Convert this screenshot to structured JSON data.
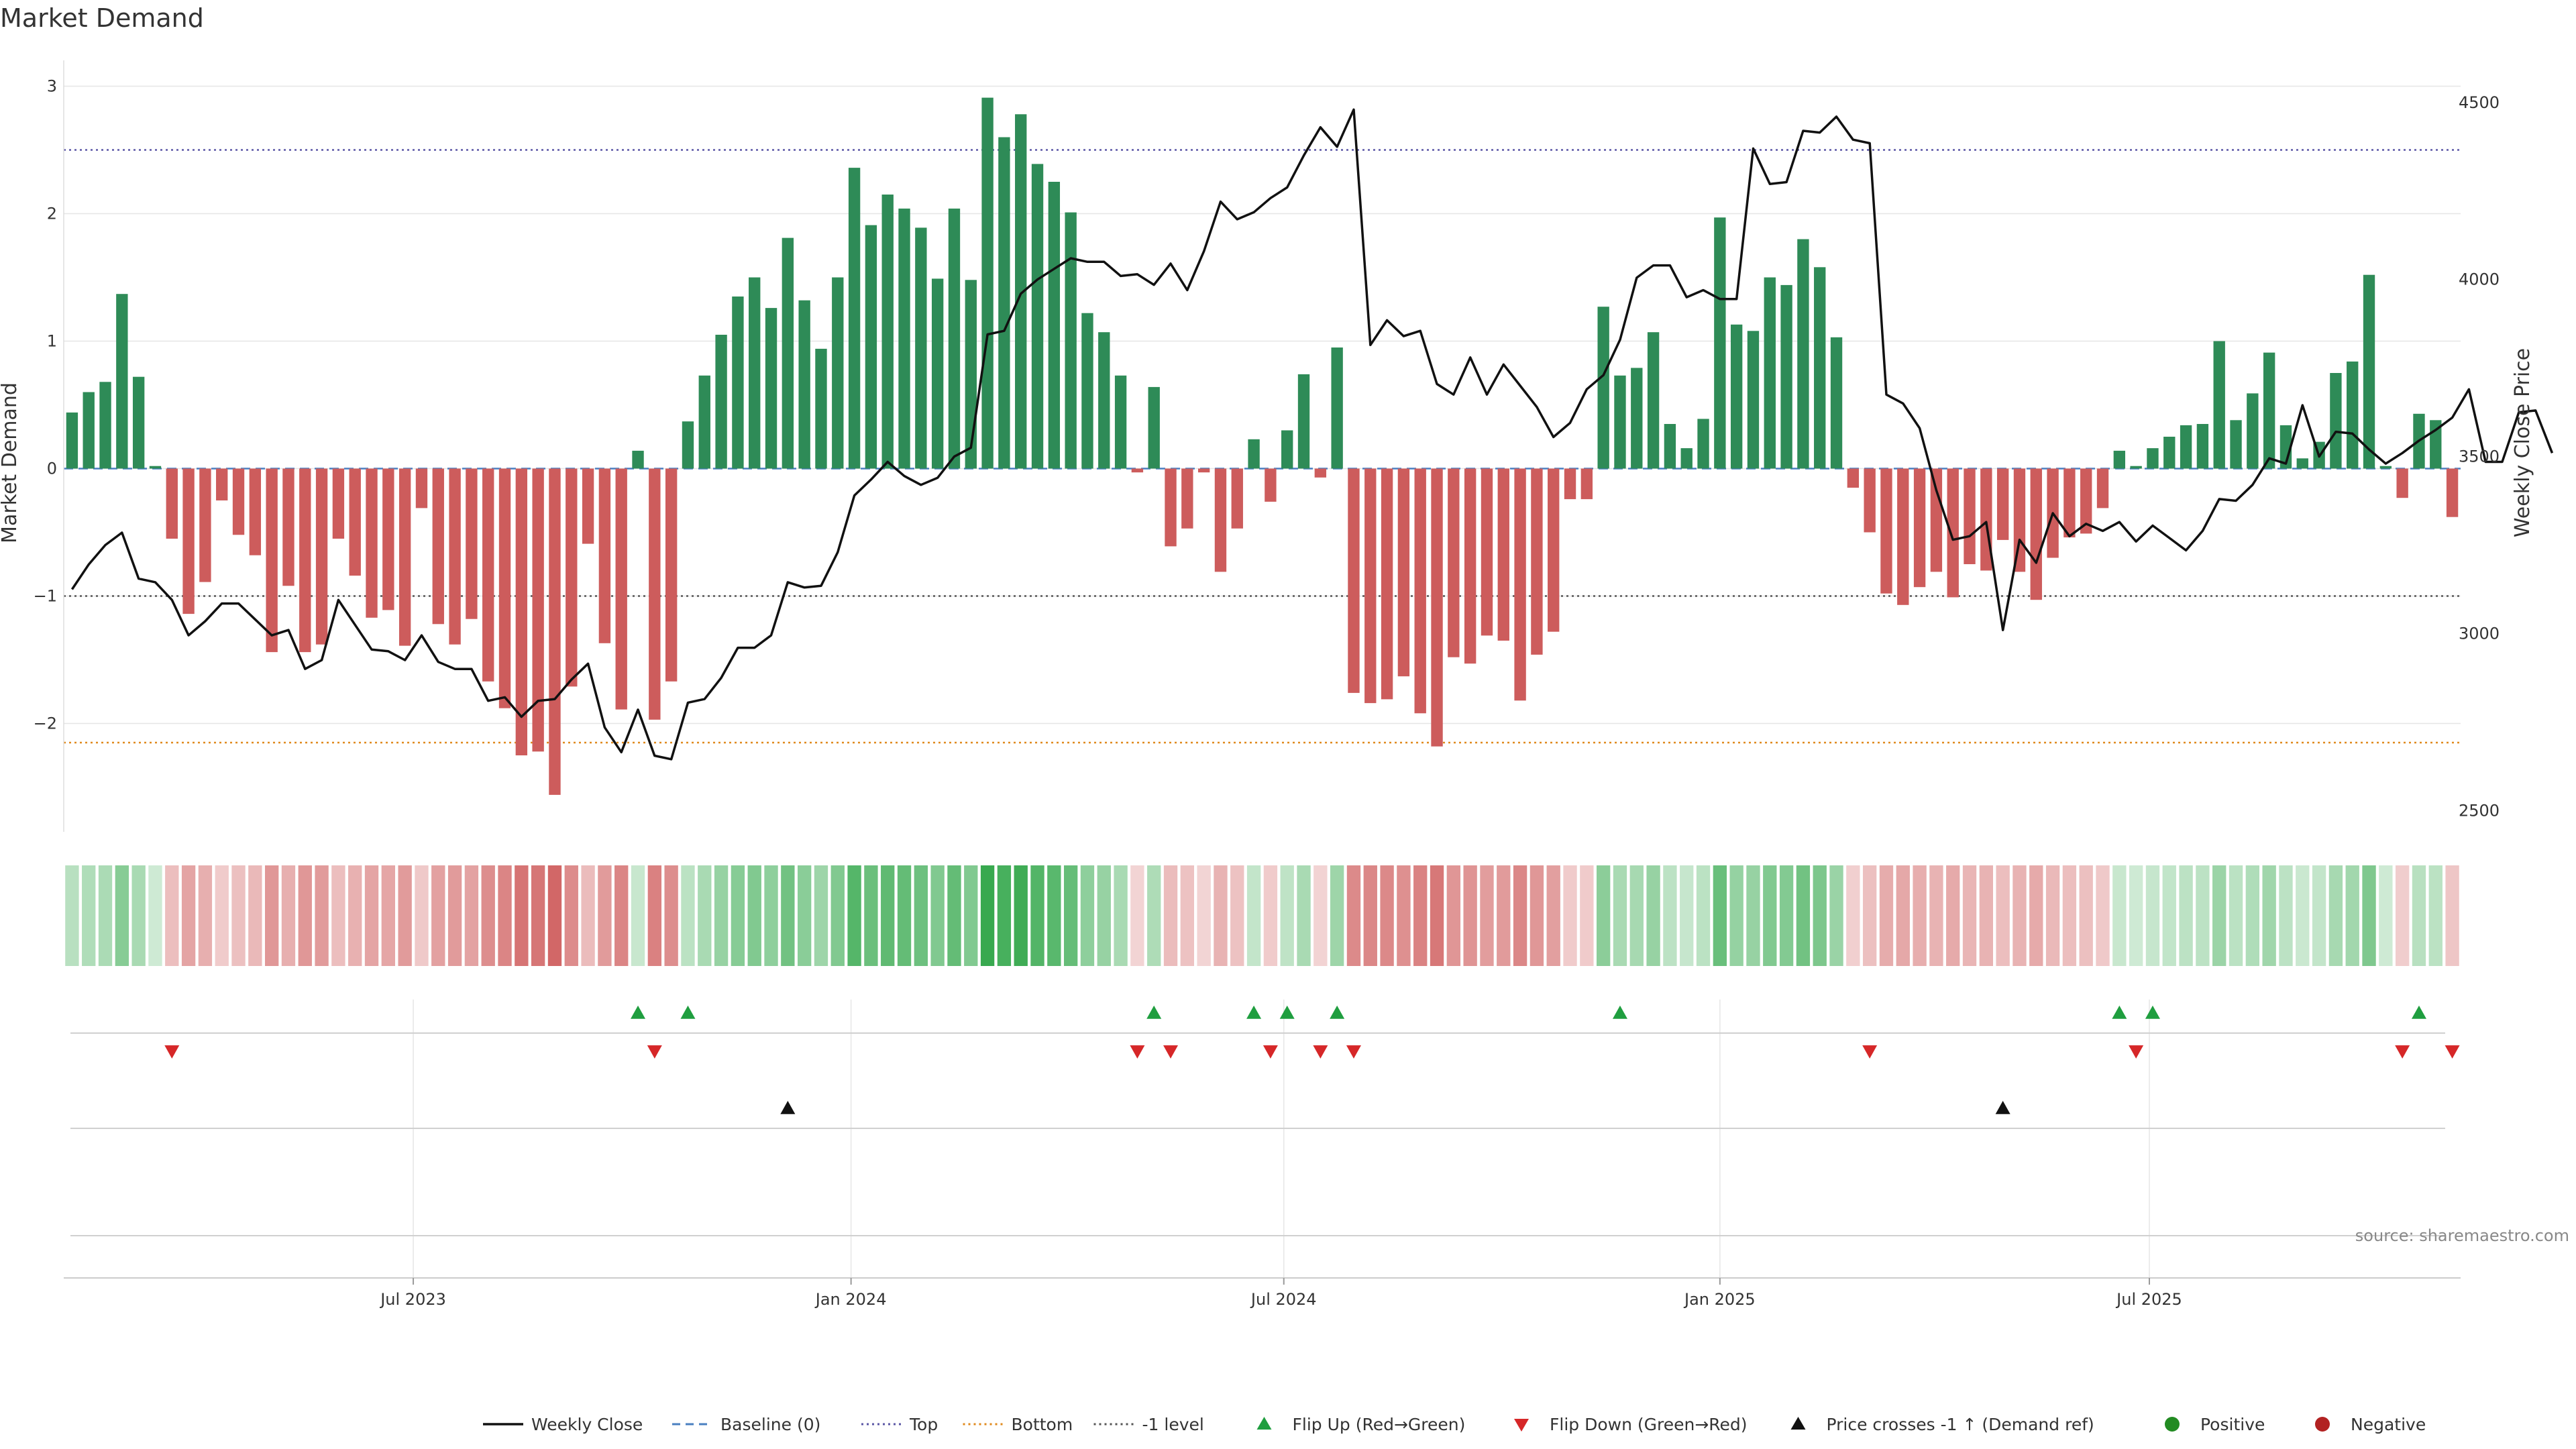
{
  "chart_data": {
    "type": "bar",
    "title": "Market Demand",
    "ylabel_left": "Market Demand",
    "ylabel_right": "Weekly Close Price",
    "source": "source: sharemaestro.com",
    "ylim_left": [
      -2.85,
      3.15
    ],
    "ylim_right": [
      2440,
      4600
    ],
    "left_ticks": [
      3,
      2,
      1,
      0,
      -1,
      -2
    ],
    "left_tick_labels": [
      "3",
      "2",
      "1",
      "0",
      "−1",
      "−2"
    ],
    "right_ticks": [
      4500,
      4000,
      3500,
      3000,
      2500
    ],
    "right_tick_labels": [
      "4500",
      "4000",
      "3500",
      "3000",
      "2500"
    ],
    "x_ticks": [
      {
        "label": "Jul 2023",
        "week": 20.5
      },
      {
        "label": "Jan 2024",
        "week": 46.8
      },
      {
        "label": "Jul 2024",
        "week": 72.8
      },
      {
        "label": "Jan 2025",
        "week": 99.0
      },
      {
        "label": "Jul 2025",
        "week": 124.8
      }
    ],
    "reference_lines": [
      {
        "name": "Top",
        "value": 2.5,
        "color": "#5b57a6",
        "style": "dotted"
      },
      {
        "name": "Bottom",
        "value": -2.15,
        "color": "#e08a1e",
        "style": "dotted"
      },
      {
        "name": "-1 level",
        "value": -1,
        "color": "#555555",
        "style": "dotted"
      },
      {
        "name": "Baseline (0)",
        "value": 0,
        "color": "#4a7fc0",
        "style": "dashed"
      }
    ],
    "demand": [
      0.44,
      0.6,
      0.68,
      1.37,
      0.72,
      0.02,
      -0.55,
      -1.14,
      -0.89,
      -0.25,
      -0.52,
      -0.68,
      -1.44,
      -0.92,
      -1.44,
      -1.38,
      -0.55,
      -0.84,
      -1.17,
      -1.11,
      -1.39,
      -0.31,
      -1.22,
      -1.38,
      -1.18,
      -1.67,
      -1.88,
      -2.25,
      -2.22,
      -2.56,
      -1.71,
      -0.59,
      -1.37,
      -1.89,
      0.14,
      -1.97,
      -1.67,
      0.37,
      0.73,
      1.05,
      1.35,
      1.5,
      1.26,
      1.81,
      1.32,
      0.94,
      1.5,
      2.36,
      1.91,
      2.15,
      2.04,
      1.89,
      1.49,
      2.04,
      1.48,
      2.91,
      2.6,
      2.78,
      2.39,
      2.25,
      2.01,
      1.22,
      1.07,
      0.73,
      -0.03,
      0.64,
      -0.61,
      -0.47,
      -0.03,
      -0.81,
      -0.47,
      0.23,
      -0.26,
      0.3,
      0.74,
      -0.07,
      0.95,
      -1.76,
      -1.84,
      -1.81,
      -1.63,
      -1.92,
      -2.18,
      -1.48,
      -1.53,
      -1.31,
      -1.35,
      -1.82,
      -1.46,
      -1.28,
      -0.24,
      -0.24,
      1.27,
      0.73,
      0.79,
      1.07,
      0.35,
      0.16,
      0.39,
      1.97,
      1.13,
      1.08,
      1.5,
      1.44,
      1.8,
      1.58,
      1.03,
      -0.15,
      -0.5,
      -0.98,
      -1.07,
      -0.93,
      -0.81,
      -1.01,
      -0.75,
      -0.8,
      -0.56,
      -0.81,
      -1.03,
      -0.7,
      -0.54,
      -0.51,
      -0.31,
      0.14,
      0.02,
      0.16,
      0.25,
      0.34,
      0.35,
      1.0,
      0.38,
      0.59,
      0.91,
      0.34,
      0.08,
      0.21,
      0.75,
      0.84,
      1.52,
      0.02,
      -0.23,
      0.43,
      0.38,
      -0.38
    ],
    "price_weekly_close": [
      3125,
      3195,
      3250,
      3285,
      3155,
      3145,
      3095,
      2995,
      3035,
      3085,
      3085,
      3040,
      2995,
      3010,
      2900,
      2925,
      3095,
      3025,
      2955,
      2950,
      2925,
      2995,
      2920,
      2900,
      2900,
      2810,
      2820,
      2765,
      2810,
      2815,
      2870,
      2915,
      2735,
      2665,
      2785,
      2655,
      2645,
      2805,
      2815,
      2875,
      2960,
      2960,
      2995,
      3145,
      3130,
      3135,
      3230,
      3390,
      3435,
      3485,
      3445,
      3420,
      3440,
      3500,
      3525,
      3845,
      3855,
      3960,
      4000,
      4030,
      4060,
      4050,
      4050,
      4010,
      4015,
      3985,
      4045,
      3970,
      4080,
      4220,
      4170,
      4190,
      4230,
      4260,
      4350,
      4430,
      4375,
      4480,
      3815,
      3885,
      3840,
      3855,
      3705,
      3675,
      3780,
      3675,
      3760,
      3700,
      3640,
      3555,
      3595,
      3690,
      3730,
      3830,
      4005,
      4040,
      4040,
      3950,
      3970,
      3945,
      3945,
      4370,
      4270,
      4275,
      4420,
      4415,
      4460,
      4395,
      4385,
      3675,
      3650,
      3580,
      3405,
      3265,
      3275,
      3315,
      3010,
      3265,
      3200,
      3340,
      3275,
      3310,
      3290,
      3315,
      3260,
      3305,
      3270,
      3235,
      3290,
      3380,
      3375,
      3420,
      3495,
      3480,
      3645,
      3500,
      3570,
      3565,
      3520,
      3480,
      3510,
      3545,
      3575,
      3610,
      3690,
      3485,
      3485,
      3625,
      3630,
      3510
    ],
    "strip_intensity": "derived from demand value per week",
    "flip_up_weeks": [
      34,
      37,
      65,
      71,
      73,
      76,
      93,
      123,
      125,
      141
    ],
    "flip_down_weeks": [
      6,
      35,
      64,
      66,
      72,
      75,
      77,
      108,
      124,
      140,
      143
    ],
    "price_cross_weeks": [
      43,
      116
    ],
    "legend": [
      {
        "label": "Weekly Close",
        "kind": "line",
        "color": "#111111"
      },
      {
        "label": "Baseline (0)",
        "kind": "dash",
        "color": "#4a7fc0"
      },
      {
        "label": "Top",
        "kind": "dot",
        "color": "#5b57a6"
      },
      {
        "label": "Bottom",
        "kind": "dot",
        "color": "#e08a1e"
      },
      {
        "label": "-1 level",
        "kind": "dot",
        "color": "#555555"
      },
      {
        "label": "Flip Up (Red→Green)",
        "kind": "tri-up",
        "color": "#1f9e3f"
      },
      {
        "label": "Flip Down (Green→Red)",
        "kind": "tri-down",
        "color": "#d62728"
      },
      {
        "label": "Price crosses -1 ↑ (Demand ref)",
        "kind": "tri-up",
        "color": "#111111"
      },
      {
        "label": "Positive",
        "kind": "circle",
        "color": "#228b22"
      },
      {
        "label": "Negative",
        "kind": "circle",
        "color": "#b22222"
      }
    ],
    "colors": {
      "positive_bar": "#2e8b57",
      "negative_bar": "#cd5c5c",
      "price_line": "#111111",
      "grid": "#e6e6e6"
    }
  }
}
